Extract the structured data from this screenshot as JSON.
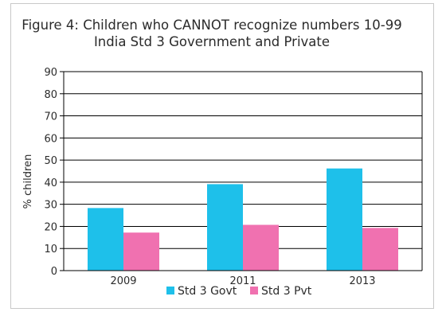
{
  "chart_data": {
    "type": "bar",
    "title": "Figure 4: Children who CANNOT recognize numbers 10-99",
    "subtitle": "India Std 3 Government and Private",
    "xlabel": "",
    "ylabel": "% children",
    "categories": [
      "2009",
      "2011",
      "2013"
    ],
    "series": [
      {
        "name": "Std 3 Govt",
        "values": [
          28.3,
          39.1,
          46.2
        ],
        "color": "#1ec0ea"
      },
      {
        "name": "Std 3 Pvt",
        "values": [
          17.2,
          20.7,
          19.3
        ],
        "color": "#f071b0"
      }
    ],
    "ylim": [
      0,
      90
    ],
    "yticks": [
      0,
      10,
      20,
      30,
      40,
      50,
      60,
      70,
      80,
      90
    ],
    "grid": true,
    "legend": "bottom"
  }
}
